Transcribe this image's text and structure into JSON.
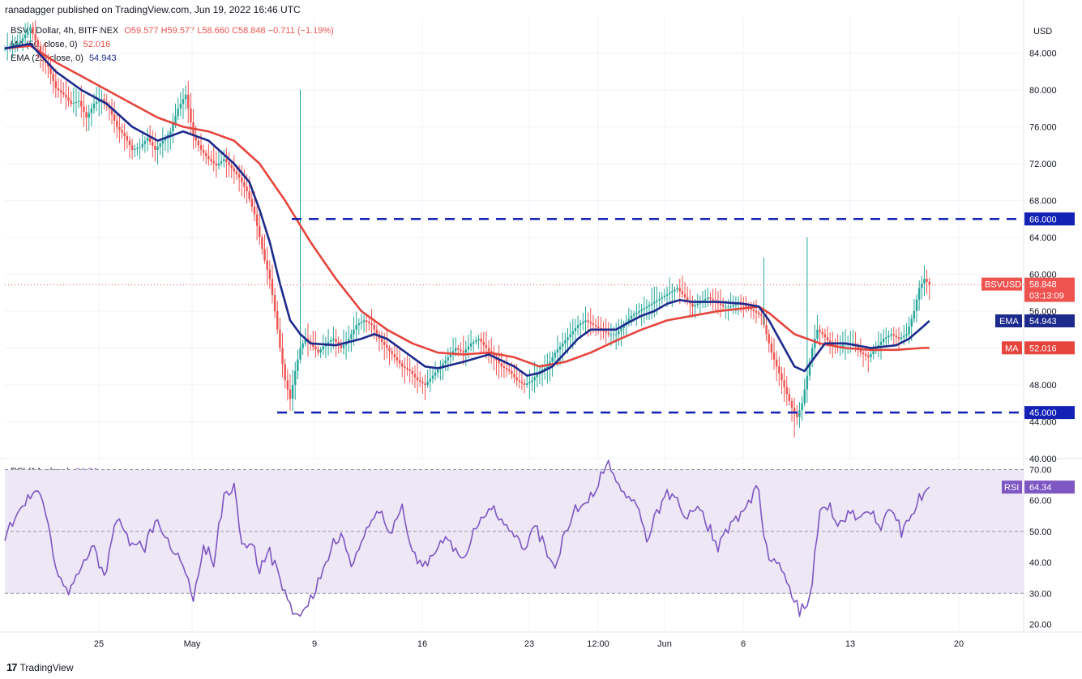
{
  "header": {
    "published": "ranadagger published on TradingView.com, Jun 19, 2022 16:46 UTC"
  },
  "legend": {
    "symbol": "BSV / Dollar, 4h, BITFINEX",
    "ohlc": "O59.577  H59.577  L58.660  C58.848  −0.711  (−1.19%)",
    "ma_label": "MA (50, close, 0)",
    "ma_value": "52.016",
    "ema_label": "EMA (20, close, 0)",
    "ema_value": "54.943",
    "rsi_label": "RSI (14, close)",
    "rsi_value": "64.34"
  },
  "footer": {
    "brand": "TradingView",
    "brand_logo": "17"
  },
  "colors": {
    "up": "#26a69a",
    "down": "#ef5350",
    "ema": "#1c2a8c",
    "ma": "#e5453d",
    "level": "#1321b5",
    "rsi": "#7e57c2",
    "rsi_band": "#ede7f6",
    "grid": "#f0f3fa"
  },
  "chart_data": [
    {
      "type": "candlestick",
      "title": "BSV / Dollar, 4h, BITFINEX",
      "currency": "USD",
      "x_ticks": [
        "25",
        "May",
        "9",
        "16",
        "23",
        "12:00",
        "Jun",
        "6",
        "13",
        "20"
      ],
      "y_ticks": [
        "84.000",
        "80.000",
        "76.000",
        "72.000",
        "68.000",
        "64.000",
        "60.000",
        "56.000",
        "52.000",
        "48.000",
        "44.000",
        "40.000"
      ],
      "ylim": [
        40,
        88
      ],
      "horizontal_levels": [
        {
          "label": "66.000",
          "value": 66
        },
        {
          "label": "45.000",
          "value": 45
        }
      ],
      "price_tags": [
        {
          "label": "BSVUSD",
          "value": "58.848",
          "timer": "03:13:09"
        },
        {
          "label": "EMA",
          "value": "54.943"
        },
        {
          "label": "MA",
          "value": "52.016"
        }
      ],
      "price_path": [
        [
          0,
          84.5
        ],
        [
          6,
          85.2
        ],
        [
          10,
          86.8
        ],
        [
          14,
          84.0
        ],
        [
          17,
          82.5
        ],
        [
          20,
          80.2
        ],
        [
          23,
          79.5
        ],
        [
          26,
          78.5
        ],
        [
          29,
          78.8
        ],
        [
          32,
          77.0
        ],
        [
          35,
          78.5
        ],
        [
          38,
          79.0
        ],
        [
          41,
          78.0
        ],
        [
          44,
          76.0
        ],
        [
          47,
          75.0
        ],
        [
          50,
          73.5
        ],
        [
          53,
          73.8
        ],
        [
          56,
          74.8
        ],
        [
          59,
          73.5
        ],
        [
          62,
          74.5
        ],
        [
          65,
          75.5
        ],
        [
          68,
          78.0
        ],
        [
          71,
          79.5
        ],
        [
          74,
          75.0
        ],
        [
          77,
          73.5
        ],
        [
          80,
          72.5
        ],
        [
          83,
          71.8
        ],
        [
          86,
          72.5
        ],
        [
          89,
          71.5
        ],
        [
          92,
          70.5
        ],
        [
          95,
          69.0
        ],
        [
          98,
          66.5
        ],
        [
          100,
          64.0
        ],
        [
          102,
          61.5
        ],
        [
          104,
          59.5
        ],
        [
          106,
          56.0
        ],
        [
          108,
          52.0
        ],
        [
          110,
          48.5
        ],
        [
          112,
          46.5
        ],
        [
          114,
          49.5
        ],
        [
          116,
          52.0
        ],
        [
          118,
          53.0
        ],
        [
          120,
          52.5
        ],
        [
          123,
          51.5
        ],
        [
          126,
          52.5
        ],
        [
          129,
          53.0
        ],
        [
          132,
          52.0
        ],
        [
          135,
          53.0
        ],
        [
          138,
          54.5
        ],
        [
          141,
          55.0
        ],
        [
          144,
          54.5
        ],
        [
          147,
          53.0
        ],
        [
          150,
          52.0
        ],
        [
          153,
          51.0
        ],
        [
          156,
          50.0
        ],
        [
          159,
          49.5
        ],
        [
          162,
          48.5
        ],
        [
          165,
          48.0
        ],
        [
          168,
          49.0
        ],
        [
          171,
          50.0
        ],
        [
          174,
          51.0
        ],
        [
          177,
          52.0
        ],
        [
          180,
          51.5
        ],
        [
          183,
          52.5
        ],
        [
          186,
          53.0
        ],
        [
          189,
          52.0
        ],
        [
          192,
          51.0
        ],
        [
          195,
          50.0
        ],
        [
          198,
          49.5
        ],
        [
          201,
          48.5
        ],
        [
          204,
          48.0
        ],
        [
          207,
          48.5
        ],
        [
          210,
          49.5
        ],
        [
          213,
          50.0
        ],
        [
          216,
          51.5
        ],
        [
          219,
          52.5
        ],
        [
          222,
          53.5
        ],
        [
          225,
          54.5
        ],
        [
          228,
          55.0
        ],
        [
          231,
          54.5
        ],
        [
          234,
          54.0
        ],
        [
          237,
          53.5
        ],
        [
          240,
          53.5
        ],
        [
          243,
          54.5
        ],
        [
          246,
          55.5
        ],
        [
          249,
          56.0
        ],
        [
          252,
          56.5
        ],
        [
          255,
          57.0
        ],
        [
          258,
          57.5
        ],
        [
          261,
          58.0
        ],
        [
          264,
          58.5
        ],
        [
          267,
          57.5
        ],
        [
          270,
          56.5
        ],
        [
          273,
          57.0
        ],
        [
          276,
          57.5
        ],
        [
          279,
          57.0
        ],
        [
          282,
          56.5
        ],
        [
          285,
          56.5
        ],
        [
          288,
          57.0
        ],
        [
          291,
          56.5
        ],
        [
          294,
          56.0
        ],
        [
          297,
          55.5
        ],
        [
          299,
          53.5
        ],
        [
          301,
          51.5
        ],
        [
          303,
          50.0
        ],
        [
          305,
          48.5
        ],
        [
          307,
          47.0
        ],
        [
          309,
          45.5
        ],
        [
          311,
          44.5
        ],
        [
          313,
          46.0
        ],
        [
          315,
          49.0
        ],
        [
          317,
          52.0
        ],
        [
          319,
          54.0
        ],
        [
          321,
          53.5
        ],
        [
          324,
          52.5
        ],
        [
          327,
          52.0
        ],
        [
          330,
          52.5
        ],
        [
          333,
          52.5
        ],
        [
          336,
          51.5
        ],
        [
          339,
          51.0
        ],
        [
          342,
          52.0
        ],
        [
          345,
          53.0
        ],
        [
          348,
          53.5
        ],
        [
          351,
          53.0
        ],
        [
          354,
          53.5
        ],
        [
          357,
          56.0
        ],
        [
          359,
          58.5
        ],
        [
          361,
          59.5
        ],
        [
          363,
          58.848
        ]
      ],
      "ema20_path": [
        [
          0,
          84.5
        ],
        [
          10,
          85.0
        ],
        [
          20,
          82.0
        ],
        [
          30,
          80.0
        ],
        [
          40,
          78.5
        ],
        [
          50,
          76.0
        ],
        [
          60,
          74.5
        ],
        [
          70,
          75.5
        ],
        [
          80,
          74.5
        ],
        [
          90,
          72.0
        ],
        [
          96,
          70.0
        ],
        [
          100,
          67.0
        ],
        [
          104,
          63.5
        ],
        [
          108,
          59.0
        ],
        [
          112,
          55.0
        ],
        [
          116,
          53.5
        ],
        [
          120,
          52.5
        ],
        [
          130,
          52.3
        ],
        [
          140,
          53.0
        ],
        [
          145,
          53.5
        ],
        [
          150,
          53.0
        ],
        [
          155,
          52.0
        ],
        [
          160,
          51.0
        ],
        [
          165,
          50.0
        ],
        [
          170,
          49.8
        ],
        [
          180,
          50.5
        ],
        [
          190,
          51.3
        ],
        [
          200,
          50.0
        ],
        [
          205,
          49.0
        ],
        [
          210,
          49.3
        ],
        [
          215,
          50.0
        ],
        [
          220,
          51.5
        ],
        [
          225,
          53.0
        ],
        [
          230,
          54.0
        ],
        [
          235,
          54.0
        ],
        [
          240,
          54.0
        ],
        [
          245,
          54.8
        ],
        [
          250,
          55.5
        ],
        [
          255,
          56.0
        ],
        [
          260,
          56.8
        ],
        [
          265,
          57.2
        ],
        [
          270,
          57.0
        ],
        [
          280,
          57.0
        ],
        [
          290,
          56.8
        ],
        [
          296,
          56.5
        ],
        [
          300,
          55.0
        ],
        [
          305,
          52.5
        ],
        [
          310,
          50.0
        ],
        [
          314,
          49.5
        ],
        [
          318,
          51.0
        ],
        [
          322,
          52.5
        ],
        [
          330,
          52.5
        ],
        [
          340,
          52.0
        ],
        [
          350,
          52.3
        ],
        [
          355,
          53.0
        ],
        [
          360,
          54.2
        ],
        [
          363,
          54.943
        ]
      ],
      "ma50_path": [
        [
          0,
          84.5
        ],
        [
          10,
          84.8
        ],
        [
          20,
          83.0
        ],
        [
          30,
          81.5
        ],
        [
          40,
          80.0
        ],
        [
          50,
          78.5
        ],
        [
          60,
          77.0
        ],
        [
          70,
          76.0
        ],
        [
          80,
          75.5
        ],
        [
          90,
          74.5
        ],
        [
          100,
          72.0
        ],
        [
          110,
          68.0
        ],
        [
          120,
          63.5
        ],
        [
          130,
          59.5
        ],
        [
          140,
          56.0
        ],
        [
          150,
          54.0
        ],
        [
          160,
          52.5
        ],
        [
          170,
          51.5
        ],
        [
          180,
          51.3
        ],
        [
          190,
          51.5
        ],
        [
          200,
          51.0
        ],
        [
          210,
          50.0
        ],
        [
          220,
          50.5
        ],
        [
          230,
          51.5
        ],
        [
          240,
          52.8
        ],
        [
          250,
          54.0
        ],
        [
          260,
          55.0
        ],
        [
          270,
          55.5
        ],
        [
          280,
          56.0
        ],
        [
          290,
          56.3
        ],
        [
          296,
          56.5
        ],
        [
          300,
          55.8
        ],
        [
          310,
          53.5
        ],
        [
          320,
          52.5
        ],
        [
          330,
          52.0
        ],
        [
          340,
          51.8
        ],
        [
          350,
          51.8
        ],
        [
          360,
          52.0
        ],
        [
          363,
          52.016
        ]
      ]
    },
    {
      "type": "line",
      "title": "RSI (14, close)",
      "y_ticks": [
        "70.00",
        "60.00",
        "50.00",
        "40.00",
        "30.00",
        "20.00"
      ],
      "ylim": [
        17.5,
        72.5
      ],
      "band": [
        30,
        70
      ],
      "midline": 50,
      "price_tag": {
        "label": "RSI",
        "value": "64.34"
      },
      "rsi_path": [
        [
          0,
          49
        ],
        [
          4,
          55
        ],
        [
          8,
          60
        ],
        [
          12,
          65
        ],
        [
          16,
          55
        ],
        [
          20,
          38
        ],
        [
          25,
          30
        ],
        [
          30,
          40
        ],
        [
          35,
          45
        ],
        [
          39,
          34
        ],
        [
          44,
          55
        ],
        [
          50,
          45
        ],
        [
          55,
          45
        ],
        [
          60,
          55
        ],
        [
          65,
          45
        ],
        [
          70,
          40
        ],
        [
          74,
          28
        ],
        [
          78,
          46
        ],
        [
          82,
          40
        ],
        [
          86,
          62
        ],
        [
          90,
          65
        ],
        [
          93,
          45
        ],
        [
          97,
          47
        ],
        [
          100,
          38
        ],
        [
          104,
          43
        ],
        [
          108,
          35
        ],
        [
          112,
          25
        ],
        [
          116,
          21
        ],
        [
          120,
          28
        ],
        [
          124,
          35
        ],
        [
          128,
          45
        ],
        [
          132,
          48
        ],
        [
          136,
          40
        ],
        [
          140,
          45
        ],
        [
          144,
          55
        ],
        [
          148,
          55
        ],
        [
          152,
          50
        ],
        [
          156,
          57
        ],
        [
          160,
          45
        ],
        [
          164,
          38
        ],
        [
          168,
          43
        ],
        [
          172,
          48
        ],
        [
          176,
          45
        ],
        [
          180,
          40
        ],
        [
          184,
          50
        ],
        [
          188,
          55
        ],
        [
          192,
          58
        ],
        [
          196,
          53
        ],
        [
          200,
          48
        ],
        [
          204,
          44
        ],
        [
          208,
          52
        ],
        [
          212,
          45
        ],
        [
          216,
          38
        ],
        [
          220,
          50
        ],
        [
          224,
          57
        ],
        [
          228,
          60
        ],
        [
          232,
          64
        ],
        [
          236,
          72
        ],
        [
          240,
          68
        ],
        [
          244,
          62
        ],
        [
          248,
          58
        ],
        [
          252,
          48
        ],
        [
          256,
          56
        ],
        [
          260,
          63
        ],
        [
          264,
          59
        ],
        [
          268,
          55
        ],
        [
          272,
          60
        ],
        [
          276,
          52
        ],
        [
          280,
          45
        ],
        [
          284,
          50
        ],
        [
          288,
          55
        ],
        [
          292,
          60
        ],
        [
          296,
          64
        ],
        [
          298,
          50
        ],
        [
          300,
          42
        ],
        [
          304,
          38
        ],
        [
          308,
          32
        ],
        [
          312,
          24
        ],
        [
          316,
          28
        ],
        [
          320,
          55
        ],
        [
          324,
          58
        ],
        [
          328,
          52
        ],
        [
          332,
          56
        ],
        [
          336,
          54
        ],
        [
          340,
          56
        ],
        [
          344,
          52
        ],
        [
          348,
          57
        ],
        [
          352,
          50
        ],
        [
          356,
          55
        ],
        [
          360,
          62
        ],
        [
          363,
          64.34
        ]
      ],
      "x_range": [
        0,
        400
      ]
    }
  ]
}
